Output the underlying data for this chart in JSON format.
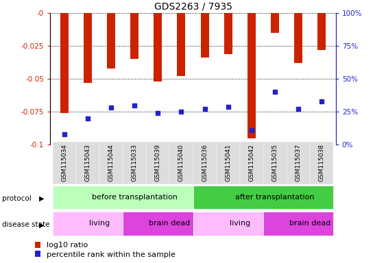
{
  "title": "GDS2263 / 7935",
  "samples": [
    "GSM115034",
    "GSM115043",
    "GSM115044",
    "GSM115033",
    "GSM115039",
    "GSM115040",
    "GSM115036",
    "GSM115041",
    "GSM115042",
    "GSM115035",
    "GSM115037",
    "GSM115038"
  ],
  "log10_ratio": [
    -0.076,
    -0.053,
    -0.042,
    -0.035,
    -0.052,
    -0.048,
    -0.034,
    -0.031,
    -0.095,
    -0.015,
    -0.038,
    -0.028
  ],
  "percentile_rank": [
    8,
    20,
    28,
    30,
    24,
    25,
    27,
    29,
    11,
    40,
    27,
    33
  ],
  "protocol_groups": [
    {
      "label": "before transplantation",
      "start": 0,
      "end": 6,
      "color": "#bbffbb"
    },
    {
      "label": "after transplantation",
      "start": 6,
      "end": 12,
      "color": "#44cc44"
    }
  ],
  "disease_groups": [
    {
      "label": "living",
      "start": 0,
      "end": 3,
      "color": "#ffbbff"
    },
    {
      "label": "brain dead",
      "start": 3,
      "end": 6,
      "color": "#dd44dd"
    },
    {
      "label": "living",
      "start": 6,
      "end": 9,
      "color": "#ffbbff"
    },
    {
      "label": "brain dead",
      "start": 9,
      "end": 12,
      "color": "#dd44dd"
    }
  ],
  "bar_color": "#cc2200",
  "dot_color": "#2222cc",
  "ylim_left": [
    -0.1,
    0.0
  ],
  "ylim_right": [
    0,
    100
  ],
  "yticks_left": [
    0.0,
    -0.025,
    -0.05,
    -0.075,
    -0.1
  ],
  "ytick_labels_left": [
    "-0",
    "-0.025",
    "-0.05",
    "-0.075",
    "-0.1"
  ],
  "yticks_right": [
    0,
    25,
    50,
    75,
    100
  ],
  "ytick_labels_right": [
    "0%",
    "25%",
    "50%",
    "75%",
    "100%"
  ],
  "background_color": "#ffffff",
  "left_axis_color": "#cc2200",
  "right_axis_color": "#2222cc",
  "bar_width": 0.35
}
